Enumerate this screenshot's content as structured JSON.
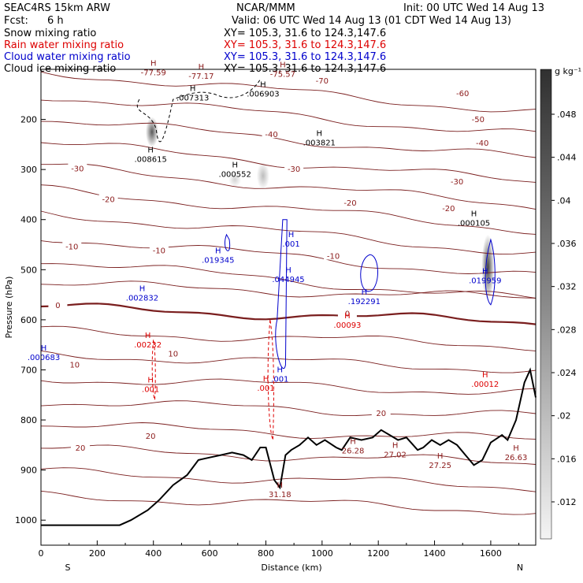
{
  "header": {
    "model": "SEAC4RS 15km ARW",
    "center": "NCAR/MMM",
    "init": "Init: 00 UTC Wed 14 Aug 13",
    "fcst_label": "Fcst:",
    "fcst_value": "6 h",
    "valid": "Valid: 06 UTC Wed 14 Aug 13 (01 CDT Wed 14 Aug 13)",
    "fields": [
      {
        "name": "Snow mixing ratio",
        "xy": "XY= 105.3, 31.6 to 124.3,147.6",
        "color": "#000000"
      },
      {
        "name": "Rain water mixing ratio",
        "xy": "XY= 105.3, 31.6 to 124.3,147.6",
        "color": "#dd0000"
      },
      {
        "name": "Cloud water mixing ratio",
        "xy": "XY= 105.3, 31.6 to 124.3,147.6",
        "color": "#0000cc"
      },
      {
        "name": "Cloud ice mixing ratio",
        "xy": "XY= 105.3, 31.6 to 124.3,147.6",
        "color": "#000000"
      }
    ]
  },
  "chart_data": {
    "type": "cross-section",
    "xlabel": "Distance (km)",
    "ylabel": "Pressure (hPa)",
    "xlim": [
      0,
      1760
    ],
    "ylim": [
      100,
      1050
    ],
    "x_ticks": [
      "0",
      "200",
      "400",
      "600",
      "800",
      "1000",
      "1200",
      "1400",
      "1600"
    ],
    "y_ticks": [
      "200",
      "300",
      "400",
      "500",
      "600",
      "700",
      "800",
      "900",
      "1000"
    ],
    "left_end": "S",
    "right_end": "N",
    "colorbar": {
      "unit": "g kg⁻¹",
      "ticks": [
        ".048",
        ".044",
        ".04",
        ".036",
        ".032",
        ".028",
        ".024",
        ".02",
        ".016",
        ".012"
      ]
    },
    "temperature_contours": [
      {
        "label": "-70",
        "x": 1000,
        "p": 122
      },
      {
        "label": "-60",
        "x": 1500,
        "p": 147
      },
      {
        "label": "-50",
        "x": 1555,
        "p": 199
      },
      {
        "label": "-40",
        "x": 820,
        "p": 229
      },
      {
        "label": "-40",
        "x": 1570,
        "p": 246
      },
      {
        "label": "-30",
        "x": 130,
        "p": 297
      },
      {
        "label": "-30",
        "x": 900,
        "p": 298
      },
      {
        "label": "-30",
        "x": 1480,
        "p": 323
      },
      {
        "label": "-20",
        "x": 240,
        "p": 359
      },
      {
        "label": "-20",
        "x": 1100,
        "p": 366
      },
      {
        "label": "-20",
        "x": 1450,
        "p": 377
      },
      {
        "label": "-10",
        "x": 110,
        "p": 453
      },
      {
        "label": "-10",
        "x": 420,
        "p": 461
      },
      {
        "label": "-10",
        "x": 1040,
        "p": 472
      },
      {
        "label": "0",
        "x": 60,
        "p": 570
      },
      {
        "label": "0",
        "x": 1090,
        "p": 587
      },
      {
        "label": "10",
        "x": 120,
        "p": 689
      },
      {
        "label": "10",
        "x": 470,
        "p": 667
      },
      {
        "label": "20",
        "x": 1210,
        "p": 786
      },
      {
        "label": "20",
        "x": 140,
        "p": 855
      },
      {
        "label": "20",
        "x": 390,
        "p": 831
      }
    ],
    "extrema": [
      {
        "type": "H",
        "value": "-77.59",
        "x": 400,
        "p": 112,
        "color": "#8b1a1a"
      },
      {
        "type": "H",
        "value": "-77.17",
        "x": 570,
        "p": 119,
        "color": "#8b1a1a"
      },
      {
        "type": "H",
        "value": "-75.57",
        "x": 860,
        "p": 115,
        "color": "#8b1a1a"
      },
      {
        "type": "H",
        "value": ".007313",
        "x": 540,
        "p": 162,
        "color": "#000000"
      },
      {
        "type": "H",
        "value": ".006903",
        "x": 790,
        "p": 154,
        "color": "#000000"
      },
      {
        "type": "H",
        "value": ".003821",
        "x": 990,
        "p": 252,
        "color": "#000000"
      },
      {
        "type": "H",
        "value": ".008615",
        "x": 390,
        "p": 285,
        "color": "#000000"
      },
      {
        "type": "H",
        "value": ".000552",
        "x": 690,
        "p": 315,
        "color": "#000000"
      },
      {
        "type": "H",
        "value": ".000105",
        "x": 1540,
        "p": 412,
        "color": "#000000"
      },
      {
        "type": "H",
        "value": ".001",
        "x": 890,
        "p": 454,
        "color": "#0000cc"
      },
      {
        "type": "H",
        "value": ".019345",
        "x": 630,
        "p": 486,
        "color": "#0000cc"
      },
      {
        "type": "H",
        "value": ".044945",
        "x": 880,
        "p": 525,
        "color": "#0000cc"
      },
      {
        "type": "H",
        "value": ".019959",
        "x": 1580,
        "p": 527,
        "color": "#0000cc"
      },
      {
        "type": "H",
        "value": ".002832",
        "x": 360,
        "p": 562,
        "color": "#0000cc"
      },
      {
        "type": "H",
        "value": ".192291",
        "x": 1150,
        "p": 569,
        "color": "#0000cc"
      },
      {
        "type": "H",
        "value": ".00093",
        "x": 1090,
        "p": 616,
        "color": "#dd0000"
      },
      {
        "type": "H",
        "value": ".00232",
        "x": 380,
        "p": 655,
        "color": "#dd0000"
      },
      {
        "type": "H",
        "value": ".000683",
        "x": 10,
        "p": 680,
        "color": "#0000cc"
      },
      {
        "type": "H",
        "value": ".001",
        "x": 850,
        "p": 724,
        "color": "#0000cc"
      },
      {
        "type": "H",
        "value": ".001",
        "x": 800,
        "p": 742,
        "color": "#dd0000"
      },
      {
        "type": "H",
        "value": ".001",
        "x": 390,
        "p": 744,
        "color": "#dd0000"
      },
      {
        "type": "H",
        "value": ".00012",
        "x": 1580,
        "p": 734,
        "color": "#dd0000"
      },
      {
        "type": "H",
        "value": "26.28",
        "x": 1110,
        "p": 867,
        "color": "#8b1a1a"
      },
      {
        "type": "H",
        "value": "27.02",
        "x": 1260,
        "p": 875,
        "color": "#8b1a1a"
      },
      {
        "type": "H",
        "value": "27.25",
        "x": 1420,
        "p": 896,
        "color": "#8b1a1a"
      },
      {
        "type": "H",
        "value": "26.63",
        "x": 1690,
        "p": 880,
        "color": "#8b1a1a"
      },
      {
        "type": "H",
        "value": "31.18",
        "x": 850,
        "p": 954,
        "color": "#8b1a1a"
      }
    ],
    "terrain": [
      [
        0,
        1010
      ],
      [
        280,
        1010
      ],
      [
        320,
        1000
      ],
      [
        380,
        980
      ],
      [
        420,
        960
      ],
      [
        470,
        930
      ],
      [
        520,
        910
      ],
      [
        560,
        880
      ],
      [
        600,
        875
      ],
      [
        640,
        870
      ],
      [
        680,
        865
      ],
      [
        720,
        870
      ],
      [
        750,
        880
      ],
      [
        780,
        855
      ],
      [
        800,
        855
      ],
      [
        830,
        920
      ],
      [
        850,
        935
      ],
      [
        870,
        870
      ],
      [
        890,
        860
      ],
      [
        920,
        850
      ],
      [
        950,
        835
      ],
      [
        980,
        850
      ],
      [
        1010,
        840
      ],
      [
        1050,
        855
      ],
      [
        1070,
        860
      ],
      [
        1100,
        835
      ],
      [
        1140,
        840
      ],
      [
        1180,
        835
      ],
      [
        1210,
        820
      ],
      [
        1240,
        830
      ],
      [
        1270,
        840
      ],
      [
        1300,
        835
      ],
      [
        1340,
        860
      ],
      [
        1360,
        855
      ],
      [
        1390,
        840
      ],
      [
        1420,
        850
      ],
      [
        1450,
        840
      ],
      [
        1480,
        850
      ],
      [
        1510,
        870
      ],
      [
        1540,
        890
      ],
      [
        1570,
        880
      ],
      [
        1600,
        845
      ],
      [
        1640,
        830
      ],
      [
        1660,
        840
      ],
      [
        1690,
        800
      ],
      [
        1720,
        725
      ],
      [
        1740,
        700
      ],
      [
        1760,
        755
      ]
    ],
    "shaded_cores": [
      {
        "x": 395,
        "p_top": 195,
        "p_bot": 255,
        "intensity": 0.75
      },
      {
        "x": 1590,
        "p_top": 430,
        "p_bot": 560,
        "intensity": 0.85
      },
      {
        "x": 790,
        "p_top": 285,
        "p_bot": 340,
        "intensity": 0.3
      },
      {
        "x": 690,
        "p_top": 305,
        "p_bot": 335,
        "intensity": 0.2
      }
    ]
  }
}
